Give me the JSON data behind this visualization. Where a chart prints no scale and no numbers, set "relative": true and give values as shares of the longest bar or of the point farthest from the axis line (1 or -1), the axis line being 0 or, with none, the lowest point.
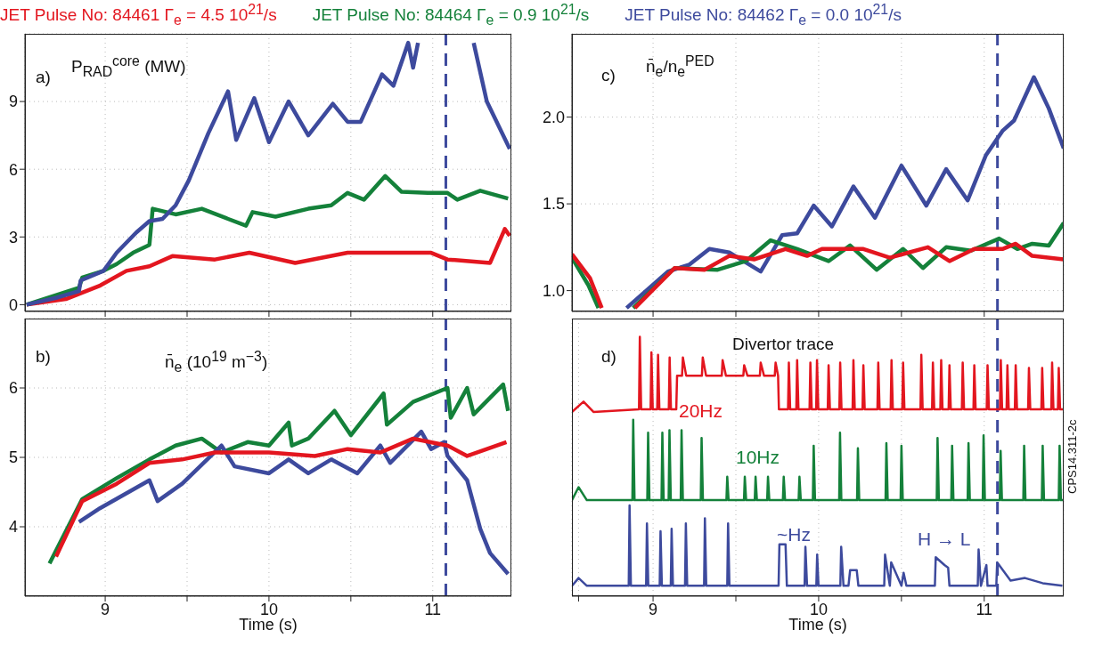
{
  "chart_data": [
    {
      "type": "line",
      "legend": "top",
      "annotations": [
        "a)",
        "P$_{RAD}$$^{core}$ (MW)"
      ],
      "xlim": [
        8.51,
        11.48
      ],
      "xticks": [
        {
          "value": 9,
          "label": null
        },
        {
          "value": 9.5,
          "label": null
        },
        {
          "value": 10,
          "label": null
        },
        {
          "value": 10.5,
          "label": null
        },
        {
          "value": 11,
          "label": null
        }
      ],
      "ylim": [
        -0.3,
        12
      ],
      "yticks": [
        0,
        3,
        6,
        9
      ],
      "grid": true,
      "tick_labels": "y",
      "ref_lines": [
        {
          "axis": "x",
          "value": 11.08,
          "color": "#3d4a9d",
          "line_style": "dashed"
        }
      ],
      "series": [
        {
          "name": "JET Pulse No: 84461 Γ$_{e}$ = 4.5 10$^{21}$/s",
          "color": "#e3161f",
          "x": [
            8.52,
            8.76,
            8.97,
            9.13,
            9.27,
            9.41,
            9.67,
            9.88,
            10.16,
            10.48,
            10.69,
            10.99,
            11.09,
            11.35,
            11.44,
            11.47
          ],
          "values": [
            0,
            0.25,
            0.85,
            1.5,
            1.7,
            2.15,
            2.0,
            2.3,
            1.85,
            2.3,
            2.3,
            2.3,
            2.0,
            1.85,
            3.35,
            3.05
          ]
        },
        {
          "name": "JET Pulse No: 84464  Γ$_{e}$ = 0.9 10$^{21}$/s",
          "color": "#14813a",
          "x": [
            8.52,
            8.84,
            8.86,
            8.99,
            9.07,
            9.17,
            9.27,
            9.29,
            9.43,
            9.59,
            9.75,
            9.86,
            9.9,
            10.04,
            10.24,
            10.38,
            10.48,
            10.58,
            10.71,
            10.81,
            10.97,
            11.09,
            11.15,
            11.29,
            11.46
          ],
          "values": [
            0,
            0.75,
            1.2,
            1.5,
            1.8,
            2.3,
            2.65,
            4.25,
            4.0,
            4.25,
            3.8,
            3.5,
            4.1,
            3.9,
            4.25,
            4.4,
            4.95,
            4.65,
            5.7,
            5.0,
            4.95,
            4.95,
            4.65,
            5.05,
            4.7
          ]
        },
        {
          "name": "JET Pulse No: 84462 Γ$_{e}$ = 0.0 10$^{21}$/s",
          "color": "#3d4a9d",
          "x": [
            8.52,
            8.7,
            8.84,
            8.85,
            8.99,
            9.07,
            9.19,
            9.27,
            9.35,
            9.43,
            9.51,
            9.63,
            9.75,
            9.8,
            9.91,
            10.0,
            10.12,
            10.24,
            10.39,
            10.48,
            10.56,
            10.69,
            10.76,
            10.85,
            10.88,
            10.91,
            11.05,
            11.25,
            11.33,
            11.47
          ],
          "values": [
            0,
            0.3,
            0.6,
            1.07,
            1.5,
            2.3,
            3.2,
            3.7,
            3.8,
            4.4,
            5.5,
            7.6,
            9.45,
            7.3,
            9.15,
            7.2,
            9.0,
            7.5,
            8.9,
            8.1,
            8.1,
            10.2,
            9.7,
            11.6,
            10.5,
            11.6,
            null,
            11.6,
            9.0,
            6.9
          ]
        }
      ]
    },
    {
      "type": "line",
      "annotations": [
        "b)",
        "n̄$_{e}$ (10$^{19}$ m$^{−3}$)"
      ],
      "xlabel": "Time (s)",
      "xlim": [
        8.51,
        11.48
      ],
      "xticks": [
        9,
        {
          "value": 9.5,
          "label": null
        },
        10,
        {
          "value": 10.5,
          "label": null
        },
        11
      ],
      "ylim": [
        3,
        7
      ],
      "yticks": [
        4,
        5,
        6
      ],
      "grid": true,
      "ref_lines": [
        {
          "axis": "x",
          "value": 11.08,
          "color": "#3d4a9d",
          "line_style": "dashed"
        }
      ],
      "series": [
        {
          "color": "#14813a",
          "x": [
            8.66,
            8.86,
            9.07,
            9.27,
            9.43,
            9.59,
            9.71,
            9.87,
            10.0,
            10.12,
            10.14,
            10.24,
            10.4,
            10.5,
            10.7,
            10.72,
            10.88,
            11.09,
            11.11,
            11.21,
            11.25,
            11.43,
            11.46
          ],
          "values": [
            3.47,
            4.4,
            4.7,
            4.97,
            5.17,
            5.27,
            5.07,
            5.22,
            5.17,
            5.5,
            5.17,
            5.27,
            5.67,
            5.32,
            5.92,
            5.47,
            5.8,
            6.0,
            5.57,
            6.0,
            5.62,
            6.05,
            5.67
          ]
        },
        {
          "color": "#3d4a9d",
          "x": [
            8.84,
            8.97,
            9.27,
            9.32,
            9.47,
            9.71,
            9.79,
            10.0,
            10.12,
            10.24,
            10.38,
            10.54,
            10.68,
            10.74,
            10.93,
            10.99,
            11.07,
            11.09,
            11.21,
            11.29,
            11.35,
            11.46
          ],
          "values": [
            4.07,
            4.27,
            4.67,
            4.37,
            4.62,
            5.17,
            4.87,
            4.77,
            4.97,
            4.77,
            4.97,
            4.77,
            5.17,
            4.92,
            5.37,
            5.12,
            5.22,
            5.02,
            4.67,
            3.97,
            3.62,
            3.32
          ]
        },
        {
          "color": "#e3161f",
          "x": [
            8.7,
            8.86,
            9.07,
            9.27,
            9.47,
            9.67,
            10.0,
            10.28,
            10.48,
            10.68,
            10.88,
            11.09,
            11.21,
            11.45
          ],
          "values": [
            3.57,
            4.37,
            4.62,
            4.92,
            4.97,
            5.07,
            5.07,
            5.02,
            5.12,
            5.07,
            5.27,
            5.17,
            5.02,
            5.22
          ]
        }
      ]
    },
    {
      "type": "line",
      "annotations": [
        "c)",
        "n̄$_{e}$/n$_{e}$$^{PED}$"
      ],
      "xlim": [
        8.51,
        11.48
      ],
      "xticks": [
        {
          "value": 9,
          "label": null
        },
        {
          "value": 9.5,
          "label": null
        },
        {
          "value": 10,
          "label": null
        },
        {
          "value": 10.5,
          "label": null
        },
        {
          "value": 11,
          "label": null
        }
      ],
      "ylim": [
        0.88,
        2.48
      ],
      "yticks": [
        {
          "value": 1,
          "label": "1.0"
        },
        1.5,
        {
          "value": 2,
          "label": "2.0"
        }
      ],
      "grid": true,
      "tick_labels": "y",
      "ref_lines": [
        {
          "axis": "x",
          "value": 11.08,
          "color": "#3d4a9d",
          "line_style": "dashed"
        }
      ],
      "series": [
        {
          "color": "#3d4a9d",
          "x": [
            8.84,
            9.09,
            9.22,
            9.34,
            9.46,
            9.65,
            9.78,
            9.87,
            9.97,
            10.08,
            10.21,
            10.34,
            10.5,
            10.65,
            10.77,
            10.9,
            11.01,
            11.11,
            11.18,
            11.3,
            11.39,
            11.48
          ],
          "values": [
            0.9,
            1.11,
            1.15,
            1.24,
            1.22,
            1.11,
            1.32,
            1.33,
            1.49,
            1.37,
            1.6,
            1.42,
            1.72,
            1.49,
            1.7,
            1.52,
            1.78,
            1.92,
            1.98,
            2.23,
            2.05,
            1.82
          ]
        },
        {
          "color": "#14813a",
          "x": [
            8.51,
            8.61,
            8.67,
            8.77,
            8.88,
            9.13,
            9.39,
            9.56,
            9.71,
            9.87,
            10.06,
            10.19,
            10.35,
            10.51,
            10.63,
            10.77,
            10.92,
            11.09,
            11.2,
            11.29,
            11.39,
            11.48
          ],
          "values": [
            1.19,
            1.03,
            0.9,
            null,
            0.9,
            1.13,
            1.12,
            1.17,
            1.29,
            1.24,
            1.17,
            1.26,
            1.12,
            1.24,
            1.13,
            1.25,
            1.23,
            1.3,
            1.24,
            1.27,
            1.26,
            1.39
          ]
        },
        {
          "color": "#e3161f",
          "x": [
            8.51,
            8.62,
            8.69,
            8.77,
            8.89,
            9.13,
            9.31,
            9.46,
            9.61,
            9.8,
            9.93,
            10.02,
            10.27,
            10.43,
            10.66,
            10.79,
            10.94,
            11.11,
            11.19,
            11.29,
            11.48
          ],
          "values": [
            1.21,
            1.07,
            0.9,
            null,
            0.9,
            1.13,
            1.12,
            1.2,
            1.18,
            1.24,
            1.2,
            1.24,
            1.24,
            1.19,
            1.25,
            1.17,
            1.24,
            1.24,
            1.27,
            1.2,
            1.18
          ]
        }
      ]
    },
    {
      "type": "line",
      "relative": true,
      "annotations": [
        "d)",
        "Divertor trace",
        "CPS14.311-2c",
        "20Hz",
        "10Hz",
        "~Hz",
        "H → L"
      ],
      "xlabel": "Time (s)",
      "xlim": [
        8.51,
        11.48
      ],
      "xticks": [
        {
          "value": 8.55,
          "label": null
        },
        9,
        {
          "value": 9.5,
          "label": null
        },
        10,
        {
          "value": 10.5,
          "label": null
        },
        11
      ],
      "grid": "x",
      "tick_labels": "x",
      "ref_lines": [
        {
          "axis": "x",
          "value": 11.08,
          "color": "#3d4a9d",
          "line_style": "dashed"
        }
      ],
      "series": [
        {
          "color": "#e3161f",
          "x": [
            8.51,
            8.58,
            8.64,
            8.915,
            8.92,
            8.928,
            8.985,
            8.99,
            8.998,
            9.025,
            9.03,
            9.038,
            9.095,
            9.1,
            9.108,
            9.14,
            9.145,
            9.175,
            9.18,
            9.2,
            9.295,
            9.3,
            9.32,
            9.415,
            9.42,
            9.44,
            9.545,
            9.55,
            9.57,
            9.645,
            9.65,
            9.67,
            9.735,
            9.74,
            9.755,
            9.76,
            9.815,
            9.82,
            9.828,
            9.865,
            9.87,
            9.878,
            9.945,
            9.95,
            9.958,
            9.985,
            9.99,
            9.998,
            10.055,
            10.06,
            10.068,
            10.125,
            10.13,
            10.138,
            10.205,
            10.21,
            10.218,
            10.265,
            10.27,
            10.278,
            10.355,
            10.36,
            10.368,
            10.435,
            10.44,
            10.448,
            10.505,
            10.51,
            10.518,
            10.615,
            10.62,
            10.628,
            10.685,
            10.69,
            10.698,
            10.735,
            10.74,
            10.748,
            10.785,
            10.79,
            10.798,
            10.865,
            10.87,
            10.878,
            10.935,
            10.94,
            10.948,
            11.015,
            11.02,
            11.028,
            11.095,
            11.1,
            11.108,
            11.135,
            11.14,
            11.148,
            11.185,
            11.19,
            11.198,
            11.265,
            11.27,
            11.278,
            11.345,
            11.35,
            11.358,
            11.405,
            11.41,
            11.418,
            11.445,
            11.45,
            11.458,
            11.48
          ],
          "values": [
            0.71,
            0.75,
            0.71,
            0.72,
            1.0,
            0.72,
            0.72,
            0.94,
            0.72,
            0.72,
            0.93,
            0.72,
            0.72,
            0.92,
            0.72,
            0.72,
            0.85,
            0.85,
            0.92,
            0.85,
            0.85,
            0.92,
            0.85,
            0.85,
            0.91,
            0.85,
            0.85,
            0.89,
            0.85,
            0.85,
            0.9,
            0.85,
            0.85,
            0.9,
            0.85,
            0.72,
            0.72,
            0.9,
            0.72,
            0.72,
            0.91,
            0.72,
            0.72,
            0.9,
            0.72,
            0.72,
            0.91,
            0.72,
            0.72,
            0.89,
            0.72,
            0.72,
            0.9,
            0.72,
            0.72,
            0.91,
            0.72,
            0.72,
            0.89,
            0.72,
            0.72,
            0.9,
            0.72,
            0.72,
            0.91,
            0.72,
            0.72,
            0.9,
            0.72,
            0.72,
            0.93,
            0.72,
            0.72,
            0.9,
            0.72,
            0.72,
            0.91,
            0.72,
            0.72,
            0.89,
            0.72,
            0.72,
            0.9,
            0.72,
            0.72,
            0.89,
            0.72,
            0.72,
            0.89,
            0.72,
            0.72,
            0.91,
            0.72,
            0.72,
            0.89,
            0.72,
            0.72,
            0.89,
            0.72,
            0.72,
            0.88,
            0.72,
            0.72,
            0.88,
            0.72,
            0.72,
            0.9,
            0.72,
            0.72,
            0.88,
            0.72,
            0.72
          ]
        },
        {
          "color": "#14813a",
          "x": [
            8.51,
            8.55,
            8.6,
            8.875,
            8.88,
            8.888,
            8.965,
            8.97,
            8.978,
            9.051,
            9.056,
            9.064,
            9.094,
            9.099,
            9.107,
            9.167,
            9.172,
            9.18,
            9.288,
            9.293,
            9.301,
            9.443,
            9.448,
            9.456,
            9.549,
            9.554,
            9.562,
            9.614,
            9.619,
            9.627,
            9.689,
            9.694,
            9.702,
            9.784,
            9.789,
            9.797,
            9.879,
            9.884,
            9.892,
            9.965,
            9.97,
            9.978,
            10.124,
            10.129,
            10.137,
            10.232,
            10.237,
            10.245,
            10.404,
            10.409,
            10.417,
            10.495,
            10.5,
            10.508,
            10.713,
            10.718,
            10.726,
            10.801,
            10.806,
            10.814,
            10.9,
            10.905,
            10.913,
            10.991,
            10.996,
            11.004,
            11.094,
            11.099,
            11.107,
            11.236,
            11.241,
            11.249,
            11.348,
            11.353,
            11.361,
            11.45,
            11.455,
            11.463,
            11.48
          ],
          "values": [
            0.37,
            0.42,
            0.37,
            0.37,
            0.68,
            0.37,
            0.37,
            0.63,
            0.37,
            0.37,
            0.63,
            0.37,
            0.37,
            0.64,
            0.37,
            0.37,
            0.64,
            0.37,
            0.37,
            0.61,
            0.37,
            0.37,
            0.46,
            0.37,
            0.37,
            0.46,
            0.37,
            0.37,
            0.46,
            0.37,
            0.37,
            0.46,
            0.37,
            0.37,
            0.46,
            0.37,
            0.37,
            0.46,
            0.37,
            0.37,
            0.58,
            0.37,
            0.37,
            0.63,
            0.37,
            0.37,
            0.57,
            0.37,
            0.37,
            0.59,
            0.37,
            0.37,
            0.58,
            0.37,
            0.37,
            0.61,
            0.37,
            0.37,
            0.58,
            0.37,
            0.37,
            0.59,
            0.37,
            0.37,
            0.62,
            0.37,
            0.37,
            0.56,
            0.37,
            0.37,
            0.58,
            0.37,
            0.37,
            0.58,
            0.37,
            0.37,
            0.58,
            0.37,
            0.37
          ]
        },
        {
          "color": "#3d4a9d",
          "x": [
            8.51,
            8.55,
            8.6,
            8.853,
            8.858,
            8.866,
            8.958,
            8.963,
            8.971,
            9.04,
            9.045,
            9.053,
            9.107,
            9.112,
            9.12,
            9.193,
            9.198,
            9.206,
            9.308,
            9.313,
            9.321,
            9.448,
            9.453,
            9.461,
            9.758,
            9.763,
            9.8,
            9.808,
            9.915,
            9.92,
            9.93,
            9.986,
            9.991,
            9.999,
            10.131,
            10.136,
            10.15,
            10.18,
            10.19,
            10.23,
            10.24,
            10.396,
            10.401,
            10.43,
            10.438,
            10.5,
            10.513,
            10.53,
            10.702,
            10.707,
            10.76,
            10.782,
            10.79,
            10.961,
            10.966,
            10.98,
            11.013,
            11.02,
            11.073,
            11.078,
            11.159,
            11.246,
            11.353,
            11.472
          ],
          "values": [
            0.04,
            0.07,
            0.04,
            0.04,
            0.35,
            0.04,
            0.04,
            0.28,
            0.04,
            0.04,
            0.25,
            0.04,
            0.04,
            0.26,
            0.04,
            0.04,
            0.28,
            0.04,
            0.04,
            0.3,
            0.04,
            0.04,
            0.28,
            0.04,
            0.04,
            0.2,
            0.2,
            0.04,
            0.04,
            0.19,
            0.04,
            0.04,
            0.16,
            0.04,
            0.04,
            0.19,
            0.04,
            0.04,
            0.1,
            0.1,
            0.04,
            0.04,
            0.16,
            0.04,
            0.13,
            0.04,
            0.09,
            0.04,
            0.04,
            0.15,
            0.12,
            0.11,
            0.04,
            0.04,
            0.18,
            0.04,
            0.12,
            0.04,
            0.04,
            0.13,
            0.06,
            0.07,
            0.05,
            0.04
          ]
        }
      ]
    }
  ]
}
